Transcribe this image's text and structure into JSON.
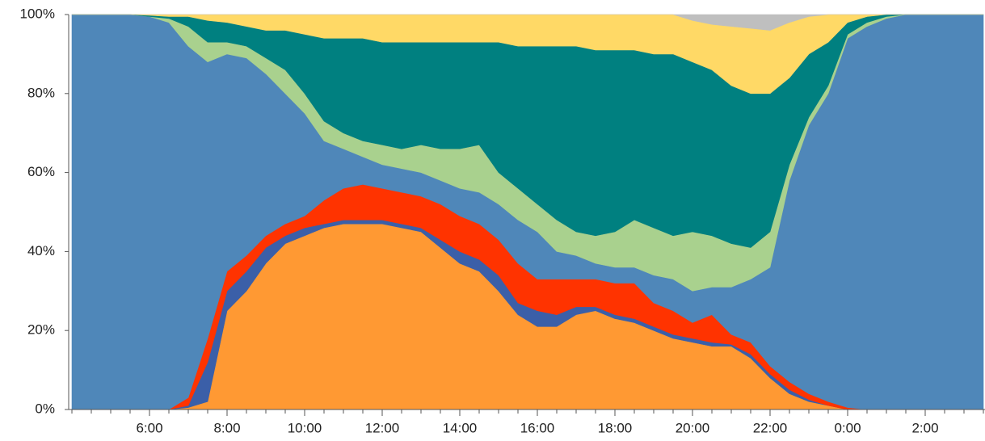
{
  "chart_data": {
    "type": "stacked_area_percent",
    "categories": [
      null,
      null,
      null,
      null,
      "6:00",
      null,
      null,
      null,
      "8:00",
      null,
      null,
      null,
      "10:00",
      null,
      null,
      null,
      "12:00",
      null,
      null,
      null,
      "14:00",
      null,
      null,
      null,
      "16:00",
      null,
      null,
      null,
      "18:00",
      null,
      null,
      null,
      "20:00",
      null,
      null,
      null,
      "22:00",
      null,
      null,
      null,
      "0:00",
      null,
      null,
      null,
      "2:00",
      null,
      null,
      null
    ],
    "series": [
      {
        "color": "#ff9933",
        "values": [
          0,
          0,
          0,
          0,
          0,
          0,
          0.5,
          2,
          25,
          30,
          37,
          42,
          44,
          46,
          47,
          47,
          47,
          46,
          45,
          41,
          37,
          35,
          30,
          24,
          21,
          21,
          24,
          25,
          23,
          22,
          20,
          18,
          17,
          16,
          16,
          13,
          8,
          4,
          2,
          1,
          0,
          0,
          0,
          0,
          0,
          0,
          0,
          0
        ]
      },
      {
        "color": "#3b5fa8",
        "values": [
          0,
          0,
          0,
          0,
          0,
          0,
          0.5,
          10,
          5,
          5,
          4,
          2,
          2,
          1,
          1,
          1,
          1,
          1,
          1,
          2,
          3,
          3,
          4,
          3,
          4,
          3,
          2,
          1,
          1,
          1,
          1,
          1,
          1,
          1,
          0.5,
          1,
          1,
          1,
          0.5,
          0,
          0,
          0,
          0,
          0,
          0,
          0,
          0,
          0
        ]
      },
      {
        "color": "#ff3300",
        "values": [
          0,
          0,
          0,
          0,
          0,
          0,
          2,
          6,
          5,
          4,
          3,
          3,
          3,
          6,
          8,
          9,
          8,
          8,
          8,
          9,
          9,
          9,
          9,
          10,
          8,
          9,
          7,
          7,
          8,
          9,
          6,
          6,
          4,
          7,
          2.5,
          3,
          2,
          2,
          1.5,
          1,
          0.5,
          0,
          0,
          0,
          0,
          0,
          0,
          0
        ]
      },
      {
        "color": "#4f87b9",
        "values": [
          100,
          100,
          100,
          100,
          99.5,
          98,
          89,
          70,
          55,
          50,
          41,
          33,
          26,
          15,
          10,
          7,
          6,
          6,
          6,
          6,
          7,
          8,
          9,
          11,
          12,
          7,
          6,
          4,
          4,
          4,
          7,
          8,
          8,
          7,
          12,
          16,
          25,
          51,
          68,
          78,
          93.5,
          97,
          99,
          100,
          100,
          100,
          100,
          100
        ]
      },
      {
        "color": "#a9d18e",
        "values": [
          0,
          0,
          0,
          0,
          0,
          1,
          5,
          5,
          3,
          3,
          4,
          6,
          5,
          5,
          4,
          4,
          5,
          5,
          7,
          8,
          10,
          12,
          8,
          8,
          7,
          8,
          6,
          7,
          9,
          12,
          12,
          11,
          15,
          13,
          11,
          8,
          9,
          4,
          2,
          2,
          1,
          1,
          0.5,
          0,
          0,
          0,
          0,
          0
        ]
      },
      {
        "color": "#008080",
        "values": [
          0,
          0,
          0,
          0,
          0.3,
          0.5,
          2.5,
          5.5,
          5,
          5,
          7,
          10,
          15,
          21,
          24,
          26,
          26,
          27,
          26,
          27,
          27,
          26,
          33,
          36,
          40,
          44,
          47,
          47,
          46,
          43,
          44,
          46,
          43,
          42,
          40,
          39,
          35,
          22,
          16,
          11,
          3,
          1.5,
          0.5,
          0,
          0,
          0,
          0,
          0
        ]
      },
      {
        "color": "#ffd966",
        "values": [
          0,
          0,
          0,
          0,
          0.2,
          0.5,
          0.5,
          1.5,
          2,
          3,
          4,
          4,
          5,
          6,
          6,
          6,
          7,
          7,
          7,
          7,
          7,
          7,
          7,
          8,
          8,
          8,
          8,
          9,
          9,
          9,
          10,
          10,
          10.5,
          11.5,
          15,
          16.5,
          16,
          14,
          9.5,
          7,
          2,
          0.5,
          0,
          0,
          0,
          0,
          0,
          0
        ]
      },
      {
        "color": "#bfbfbf",
        "values": [
          0,
          0,
          0,
          0,
          0,
          0,
          0,
          0,
          0,
          0,
          0,
          0,
          0,
          0,
          0,
          0,
          0,
          0,
          0,
          0,
          0,
          0,
          0,
          0,
          0,
          0,
          0,
          0,
          0,
          0,
          0,
          0,
          1.5,
          2.5,
          3,
          3.5,
          4,
          2,
          0.5,
          0,
          0,
          0,
          0,
          0,
          0,
          0,
          0,
          0
        ]
      }
    ],
    "ylim": [
      0,
      100
    ],
    "yticks": [
      {
        "value": 0,
        "label": "0%"
      },
      {
        "value": 20,
        "label": "20%"
      },
      {
        "value": 40,
        "label": "40%"
      },
      {
        "value": 60,
        "label": "60%"
      },
      {
        "value": 80,
        "label": "80%"
      },
      {
        "value": 100,
        "label": "100%"
      }
    ]
  }
}
